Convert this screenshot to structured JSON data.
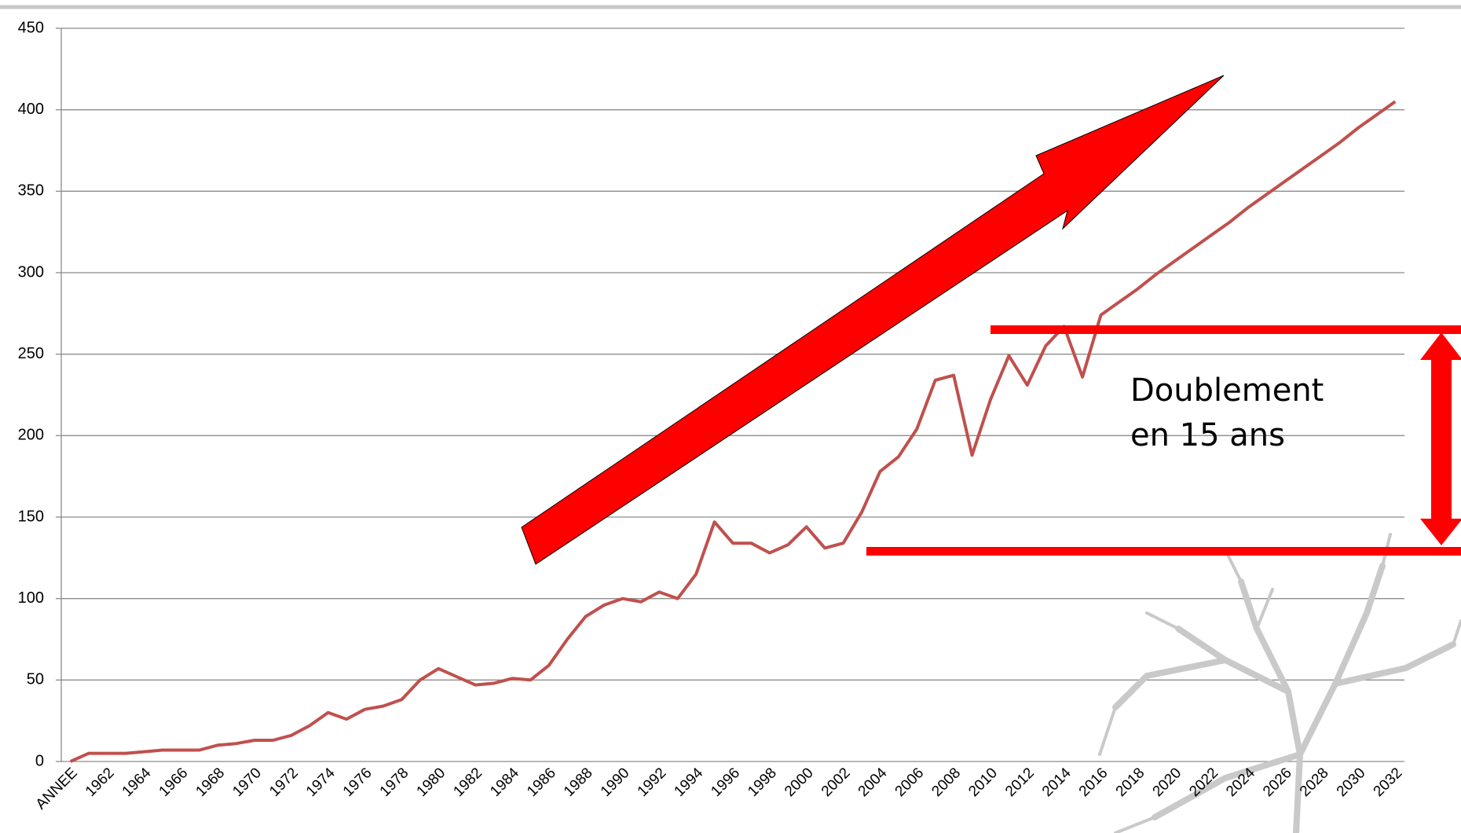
{
  "chart_data": {
    "type": "line",
    "categories": [
      "ANNEE",
      null,
      "1962",
      null,
      "1964",
      null,
      "1966",
      null,
      "1968",
      null,
      "1970",
      null,
      "1972",
      null,
      "1974",
      null,
      "1976",
      null,
      "1978",
      null,
      "1980",
      null,
      "1982",
      null,
      "1984",
      null,
      "1986",
      null,
      "1988",
      null,
      "1990",
      null,
      "1992",
      null,
      "1994",
      null,
      "1996",
      null,
      "1998",
      null,
      "2000",
      null,
      "2002",
      null,
      "2004",
      null,
      "2006",
      null,
      "2008",
      null,
      "2010",
      null,
      "2012",
      null,
      "2014",
      null,
      "2016",
      null,
      "2018",
      null,
      "2020",
      null,
      "2022",
      null,
      "2024",
      null,
      "2026",
      null,
      "2028",
      null,
      "2030",
      null,
      "2032"
    ],
    "series": [
      {
        "color": "#c0504d",
        "values": [
          0,
          5,
          5,
          5,
          6,
          7,
          7,
          7,
          10,
          11,
          13,
          13,
          16,
          22,
          30,
          26,
          32,
          34,
          38,
          50,
          57,
          52,
          47,
          48,
          51,
          50,
          59,
          75,
          89,
          96,
          100,
          98,
          104,
          100,
          115,
          147,
          134,
          134,
          128,
          133,
          144,
          131,
          134,
          153,
          178,
          187,
          204,
          234,
          237,
          188,
          222,
          249,
          231,
          255,
          267,
          236,
          274,
          282,
          290,
          299,
          307,
          315,
          323,
          331,
          340,
          348,
          356,
          364,
          372,
          380,
          389,
          397,
          405
        ]
      }
    ],
    "ylim": [
      0,
      450
    ],
    "yticks": [
      0,
      50,
      100,
      150,
      200,
      250,
      300,
      350,
      400,
      450
    ],
    "grid": true,
    "annotations": [
      "Doublement",
      "en 15 ans"
    ]
  }
}
